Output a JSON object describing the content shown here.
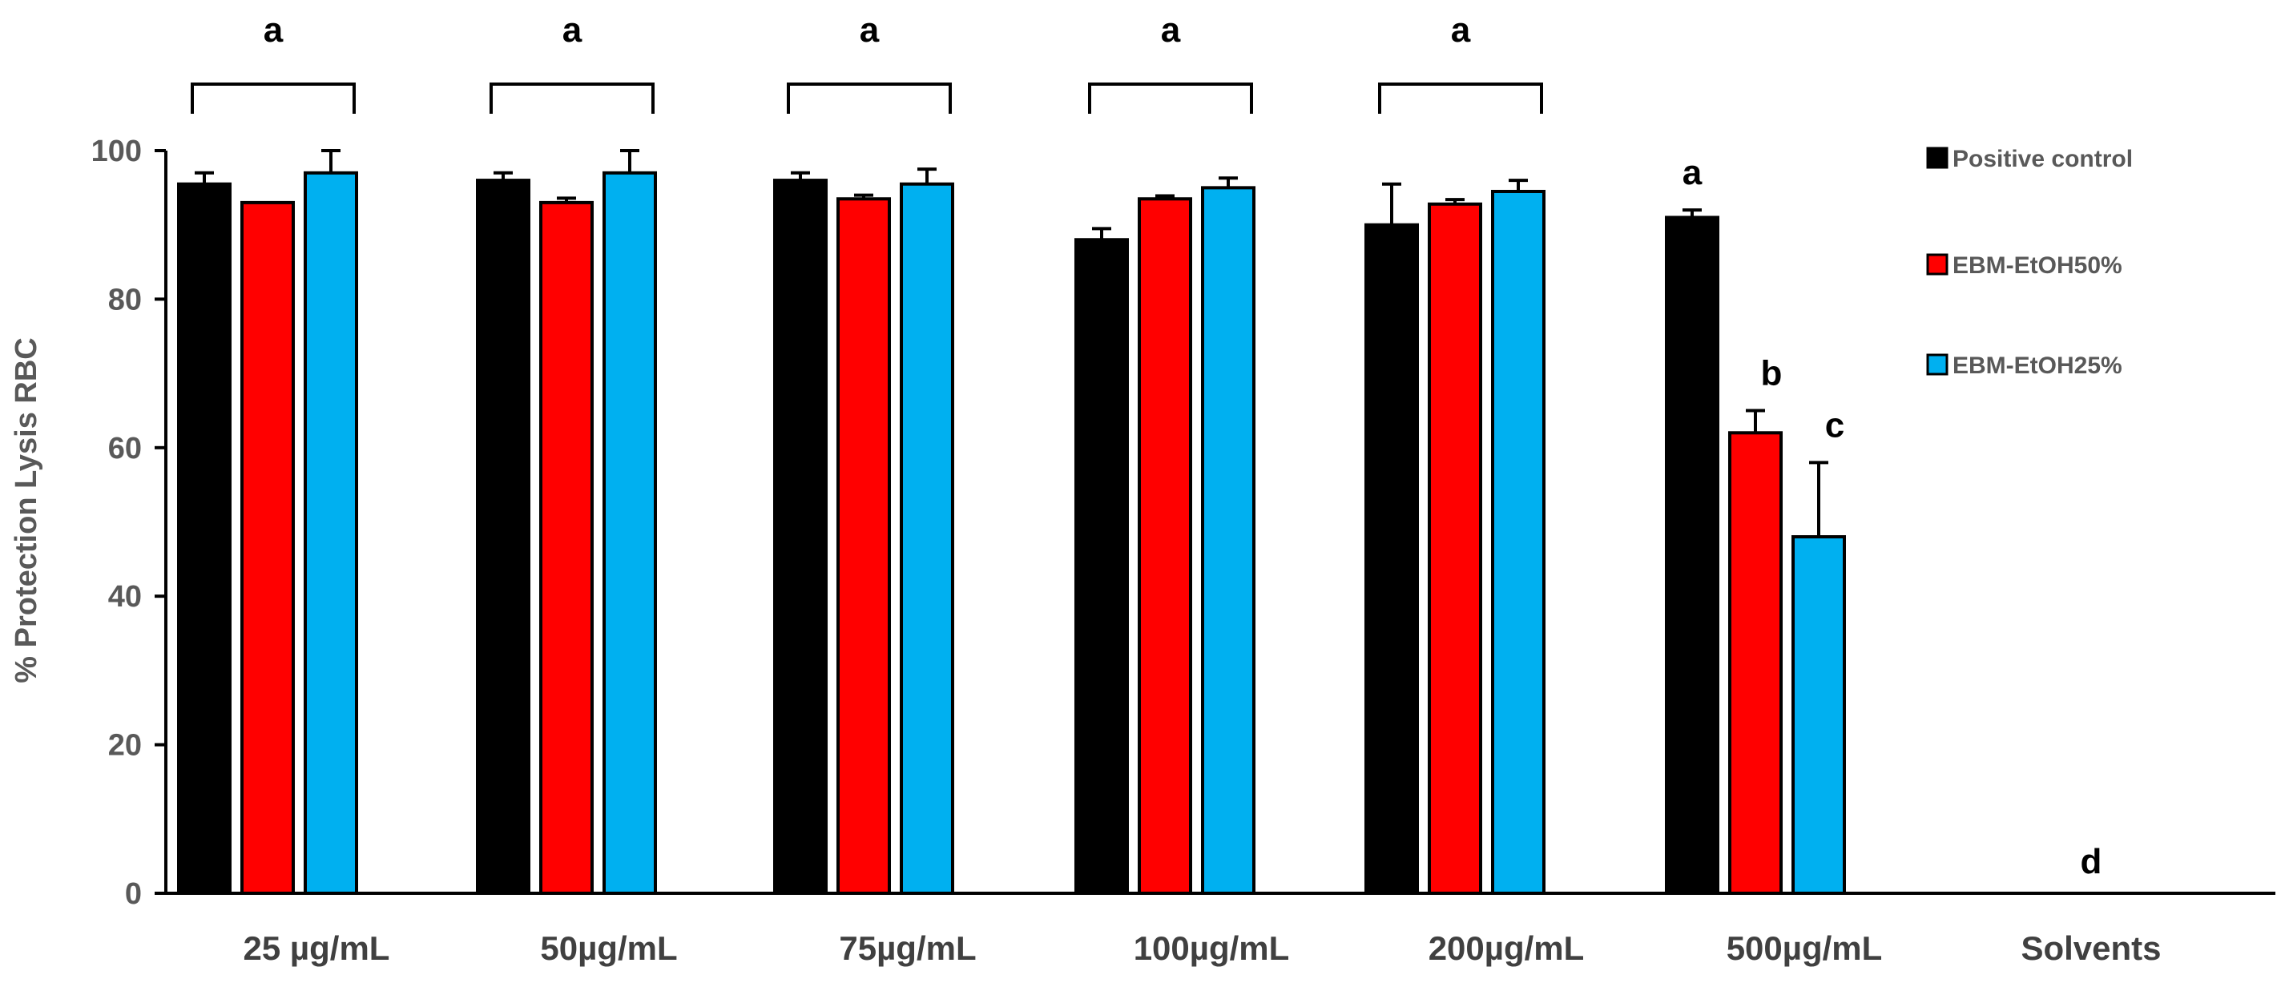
{
  "chart_data": {
    "type": "bar",
    "title": "",
    "xlabel": "",
    "ylabel": "% Protection Lysis RBC",
    "ylim": [
      0,
      100
    ],
    "yticks": [
      0,
      20,
      40,
      60,
      80,
      100
    ],
    "grid": false,
    "legend_position": "right",
    "categories": [
      "25 µg/mL",
      "50µg/mL",
      "75µg/mL",
      "100µg/mL",
      "200µg/mL",
      "500µg/mL",
      "Solvents"
    ],
    "series": [
      {
        "name": "Positive control",
        "color": "#000000",
        "values": [
          95.5,
          96,
          96,
          88,
          90,
          91,
          null
        ],
        "errors": [
          1.5,
          1,
          1,
          1.5,
          5.5,
          1
        ]
      },
      {
        "name": "EBM-EtOH50%",
        "color": "#ff0000",
        "values": [
          93,
          93,
          93.5,
          93.5,
          92.8,
          62,
          null
        ],
        "errors": [
          0,
          0.6,
          0.5,
          0.4,
          0.6,
          3
        ]
      },
      {
        "name": "EBM-EtOH25%",
        "color": "#00b0f0",
        "values": [
          97,
          97,
          95.5,
          95,
          94.5,
          48,
          null
        ],
        "errors": [
          3,
          3,
          2,
          1.3,
          1.5,
          10
        ]
      }
    ],
    "annotations": {
      "group_letters": [
        "a",
        "a",
        "a",
        "a",
        "a"
      ],
      "bar_letters_500": [
        "a",
        "b",
        "c"
      ],
      "solvents_letter": "d"
    }
  }
}
